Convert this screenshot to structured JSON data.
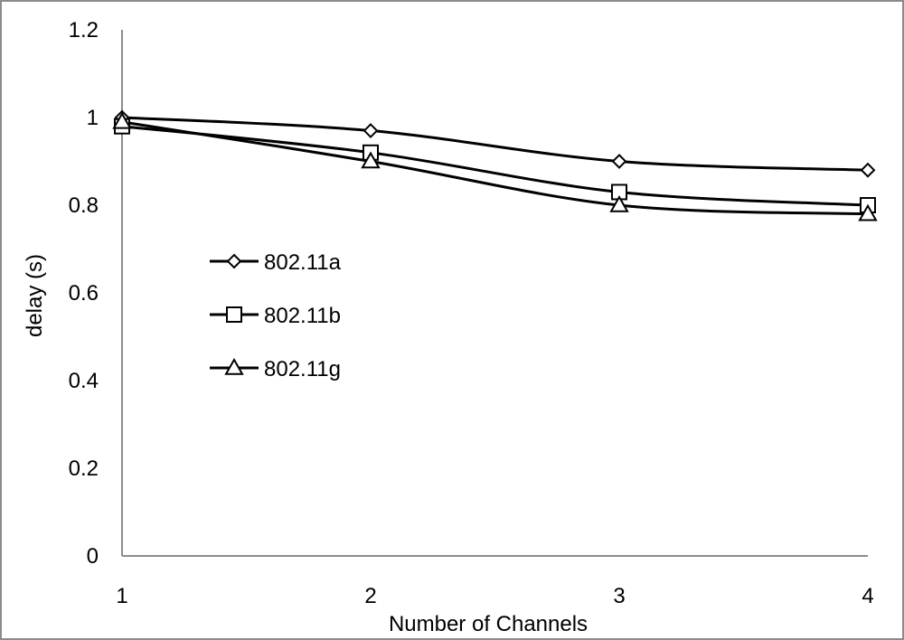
{
  "chart_data": {
    "type": "line",
    "xlabel": "Number of Channels",
    "ylabel": "delay (s)",
    "x": [
      1,
      2,
      3,
      4
    ],
    "x_tick_labels": [
      "1",
      "2",
      "3",
      "4"
    ],
    "y_tick_labels": [
      "0",
      "0.2",
      "0.4",
      "0.6",
      "0.8",
      "1",
      "1.2"
    ],
    "ylim": [
      0,
      1.2
    ],
    "xlim": [
      1,
      4
    ],
    "grid": false,
    "legend_position": "left-middle",
    "smooth": true,
    "line_color": "#000000",
    "axis_color": "#8c8c8c",
    "series": [
      {
        "name": "802.11a",
        "marker": "diamond",
        "values": [
          1.0,
          0.97,
          0.9,
          0.88
        ]
      },
      {
        "name": "802.11b",
        "marker": "square",
        "values": [
          0.98,
          0.92,
          0.83,
          0.8
        ]
      },
      {
        "name": "802.11g",
        "marker": "triangle",
        "values": [
          0.99,
          0.9,
          0.8,
          0.78
        ]
      }
    ]
  }
}
